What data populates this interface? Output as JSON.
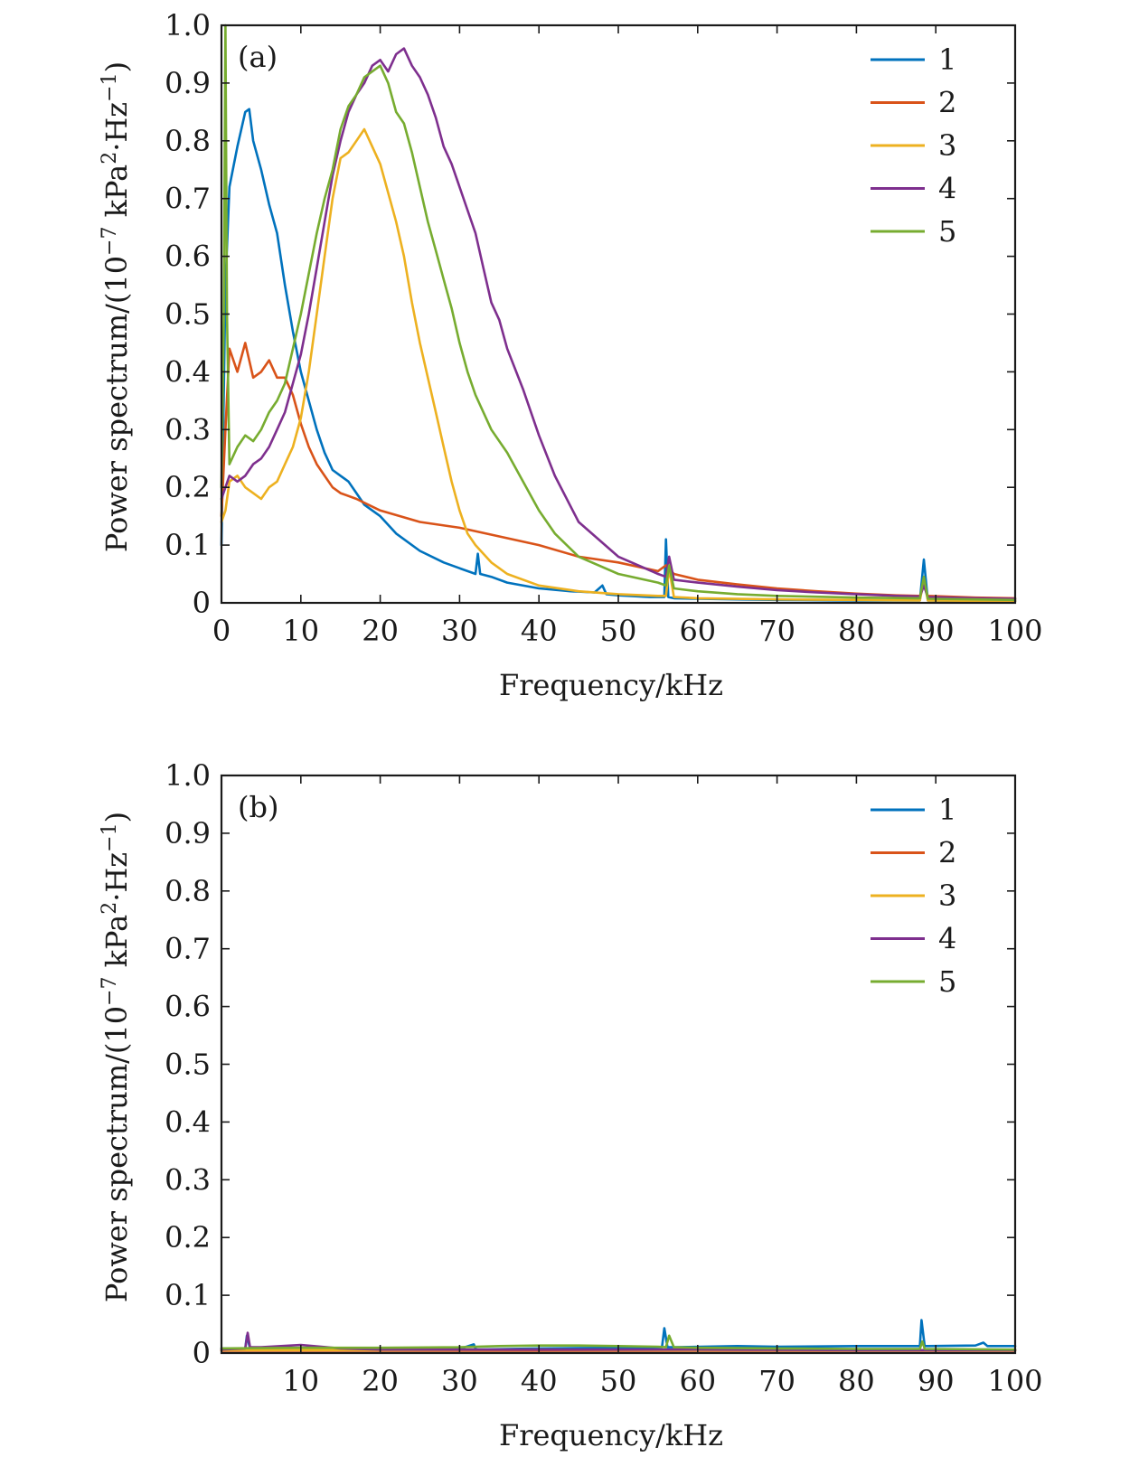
{
  "chart_data": [
    {
      "type": "line",
      "panel_label": "(a)",
      "xlabel": "Frequency/kHz",
      "ylabel_text": "Power spectrum/(10",
      "ylabel_exp": "−7",
      "ylabel_unit": " kPa",
      "ylabel_sq": "2",
      "ylabel_hz": "·Hz",
      "ylabel_hzexp": "−1",
      "ylabel_close": ")",
      "xlim": [
        0,
        100
      ],
      "ylim": [
        0,
        1.0
      ],
      "xticks": [
        "0",
        "10",
        "20",
        "30",
        "40",
        "50",
        "60",
        "70",
        "80",
        "90",
        "100"
      ],
      "yticks": [
        "0",
        "0.1",
        "0.2",
        "0.3",
        "0.4",
        "0.5",
        "0.6",
        "0.7",
        "0.8",
        "0.9",
        "1.0"
      ],
      "legend_position": "top-right",
      "series": [
        {
          "name": "1",
          "color": "#0072BD",
          "x": [
            0,
            0.5,
            1,
            2,
            3,
            3.5,
            4,
            5,
            6,
            7,
            8,
            9,
            10,
            11,
            12,
            13,
            14,
            15,
            16,
            17,
            18,
            20,
            22,
            25,
            28,
            30,
            32,
            32.3,
            32.6,
            34,
            36,
            40,
            44,
            47,
            48,
            48.5,
            50,
            54,
            55.8,
            56,
            56.3,
            57,
            60,
            65,
            70,
            80,
            88,
            88.5,
            89,
            95,
            100
          ],
          "y": [
            0.1,
            0.55,
            0.72,
            0.79,
            0.85,
            0.855,
            0.8,
            0.75,
            0.69,
            0.64,
            0.55,
            0.47,
            0.4,
            0.35,
            0.3,
            0.26,
            0.23,
            0.22,
            0.21,
            0.19,
            0.17,
            0.15,
            0.12,
            0.09,
            0.07,
            0.06,
            0.05,
            0.085,
            0.05,
            0.045,
            0.035,
            0.025,
            0.02,
            0.018,
            0.03,
            0.015,
            0.013,
            0.01,
            0.01,
            0.11,
            0.01,
            0.008,
            0.007,
            0.006,
            0.005,
            0.004,
            0.004,
            0.075,
            0.004,
            0.003,
            0.003
          ]
        },
        {
          "name": "2",
          "color": "#D95319",
          "x": [
            0,
            0.5,
            1,
            2,
            3,
            4,
            5,
            6,
            7,
            8,
            9,
            10,
            11,
            12,
            13,
            14,
            15,
            17,
            20,
            25,
            30,
            35,
            40,
            45,
            50,
            55,
            56,
            57,
            60,
            65,
            70,
            75,
            80,
            85,
            88,
            88.5,
            89,
            95,
            100
          ],
          "y": [
            0.15,
            0.3,
            0.44,
            0.4,
            0.45,
            0.39,
            0.4,
            0.42,
            0.39,
            0.39,
            0.36,
            0.31,
            0.27,
            0.24,
            0.22,
            0.2,
            0.19,
            0.18,
            0.16,
            0.14,
            0.13,
            0.115,
            0.1,
            0.08,
            0.07,
            0.055,
            0.065,
            0.05,
            0.04,
            0.032,
            0.025,
            0.02,
            0.016,
            0.013,
            0.012,
            0.03,
            0.012,
            0.009,
            0.008
          ]
        },
        {
          "name": "3",
          "color": "#EDB120",
          "x": [
            0,
            0.5,
            1,
            2,
            3,
            4,
            5,
            6,
            7,
            8,
            9,
            10,
            11,
            12,
            13,
            14,
            15,
            16,
            17,
            18,
            19,
            20,
            21,
            22,
            23,
            24,
            25,
            26,
            27,
            28,
            29,
            30,
            31,
            32,
            34,
            36,
            40,
            45,
            50,
            55,
            56,
            56.4,
            57,
            60,
            70,
            80,
            88,
            88.5,
            89,
            100
          ],
          "y": [
            0.14,
            0.16,
            0.21,
            0.22,
            0.2,
            0.19,
            0.18,
            0.2,
            0.21,
            0.24,
            0.27,
            0.32,
            0.4,
            0.5,
            0.6,
            0.7,
            0.77,
            0.78,
            0.8,
            0.82,
            0.79,
            0.76,
            0.71,
            0.66,
            0.6,
            0.52,
            0.45,
            0.39,
            0.33,
            0.27,
            0.21,
            0.16,
            0.12,
            0.1,
            0.07,
            0.05,
            0.03,
            0.02,
            0.015,
            0.012,
            0.012,
            0.06,
            0.01,
            0.008,
            0.006,
            0.005,
            0.004,
            0.04,
            0.004,
            0.003
          ]
        },
        {
          "name": "4",
          "color": "#7E2F8E",
          "x": [
            0,
            0.5,
            1,
            2,
            3,
            4,
            5,
            6,
            7,
            8,
            9,
            10,
            11,
            12,
            13,
            14,
            15,
            16,
            17,
            18,
            19,
            20,
            21,
            22,
            23,
            24,
            25,
            26,
            27,
            28,
            29,
            30,
            31,
            32,
            33,
            34,
            35,
            36,
            38,
            40,
            42,
            45,
            50,
            55,
            56,
            56.4,
            57,
            60,
            65,
            70,
            75,
            80,
            85,
            88,
            88.5,
            89,
            95,
            100
          ],
          "y": [
            0.18,
            0.2,
            0.22,
            0.21,
            0.22,
            0.24,
            0.25,
            0.27,
            0.3,
            0.33,
            0.38,
            0.43,
            0.5,
            0.58,
            0.66,
            0.74,
            0.8,
            0.85,
            0.88,
            0.9,
            0.93,
            0.94,
            0.92,
            0.95,
            0.96,
            0.93,
            0.91,
            0.88,
            0.84,
            0.79,
            0.76,
            0.72,
            0.68,
            0.64,
            0.58,
            0.52,
            0.49,
            0.44,
            0.37,
            0.29,
            0.22,
            0.14,
            0.08,
            0.05,
            0.045,
            0.08,
            0.04,
            0.035,
            0.028,
            0.022,
            0.018,
            0.015,
            0.012,
            0.011,
            0.03,
            0.01,
            0.008,
            0.007
          ]
        },
        {
          "name": "5",
          "color": "#77AC30",
          "x": [
            0,
            0.3,
            0.5,
            0.7,
            1,
            2,
            3,
            4,
            5,
            6,
            7,
            8,
            9,
            10,
            11,
            12,
            13,
            14,
            15,
            16,
            17,
            18,
            19,
            20,
            21,
            22,
            23,
            24,
            25,
            26,
            27,
            28,
            29,
            30,
            31,
            32,
            34,
            36,
            38,
            40,
            42,
            45,
            50,
            55,
            56,
            56.4,
            57,
            60,
            65,
            70,
            80,
            88,
            88.5,
            89,
            95,
            100
          ],
          "y": [
            0.2,
            0.5,
            1.0,
            0.5,
            0.24,
            0.27,
            0.29,
            0.28,
            0.3,
            0.33,
            0.35,
            0.38,
            0.44,
            0.5,
            0.57,
            0.64,
            0.7,
            0.75,
            0.82,
            0.86,
            0.88,
            0.91,
            0.92,
            0.93,
            0.9,
            0.85,
            0.83,
            0.78,
            0.72,
            0.66,
            0.61,
            0.56,
            0.51,
            0.45,
            0.4,
            0.36,
            0.3,
            0.26,
            0.21,
            0.16,
            0.12,
            0.08,
            0.05,
            0.035,
            0.03,
            0.065,
            0.025,
            0.02,
            0.015,
            0.012,
            0.009,
            0.008,
            0.045,
            0.007,
            0.006,
            0.005
          ]
        }
      ]
    },
    {
      "type": "line",
      "panel_label": "(b)",
      "xlabel": "Frequency/kHz",
      "ylabel_text": "Power spectrum/(10",
      "ylabel_exp": "−7",
      "ylabel_unit": " kPa",
      "ylabel_sq": "2",
      "ylabel_hz": "·Hz",
      "ylabel_hzexp": "−1",
      "ylabel_close": ")",
      "xlim": [
        0,
        100
      ],
      "ylim": [
        0,
        1.0
      ],
      "xticks": [
        "10",
        "20",
        "30",
        "40",
        "50",
        "60",
        "70",
        "80",
        "90",
        "100"
      ],
      "yticks": [
        "0",
        "0.1",
        "0.2",
        "0.3",
        "0.4",
        "0.5",
        "0.6",
        "0.7",
        "0.8",
        "0.9",
        "1.0"
      ],
      "legend_position": "top-right",
      "series": [
        {
          "name": "1",
          "color": "#0072BD",
          "x": [
            0,
            3,
            3.2,
            3.6,
            4,
            10,
            20,
            30,
            31.8,
            32,
            32.3,
            40,
            50,
            55.5,
            55.8,
            56.2,
            57,
            65,
            70,
            80,
            88,
            88.2,
            88.6,
            89,
            95,
            96,
            96.5,
            100
          ],
          "y": [
            0.008,
            0.008,
            0.03,
            0.008,
            0.007,
            0.006,
            0.006,
            0.007,
            0.015,
            0.007,
            0.006,
            0.008,
            0.009,
            0.01,
            0.043,
            0.01,
            0.01,
            0.012,
            0.011,
            0.012,
            0.012,
            0.057,
            0.012,
            0.012,
            0.013,
            0.018,
            0.012,
            0.012
          ]
        },
        {
          "name": "2",
          "color": "#D95319",
          "x": [
            0,
            10,
            20,
            40,
            60,
            80,
            100
          ],
          "y": [
            0.004,
            0.004,
            0.004,
            0.004,
            0.004,
            0.004,
            0.004
          ]
        },
        {
          "name": "3",
          "color": "#EDB120",
          "x": [
            0,
            10,
            20,
            40,
            60,
            80,
            100
          ],
          "y": [
            0.005,
            0.005,
            0.005,
            0.006,
            0.005,
            0.005,
            0.005
          ]
        },
        {
          "name": "4",
          "color": "#7E2F8E",
          "x": [
            0,
            3,
            3.3,
            3.6,
            5,
            10,
            15,
            20,
            40,
            60,
            80,
            100
          ],
          "y": [
            0.006,
            0.008,
            0.035,
            0.01,
            0.01,
            0.014,
            0.008,
            0.006,
            0.006,
            0.006,
            0.005,
            0.005
          ]
        },
        {
          "name": "5",
          "color": "#77AC30",
          "x": [
            0,
            10,
            20,
            30,
            35,
            40,
            45,
            50,
            55,
            56,
            56.4,
            57,
            60,
            70,
            80,
            88,
            88.3,
            88.6,
            100
          ],
          "y": [
            0.008,
            0.009,
            0.009,
            0.01,
            0.012,
            0.013,
            0.013,
            0.012,
            0.011,
            0.01,
            0.03,
            0.01,
            0.009,
            0.008,
            0.007,
            0.007,
            0.02,
            0.007,
            0.006
          ]
        }
      ]
    }
  ]
}
